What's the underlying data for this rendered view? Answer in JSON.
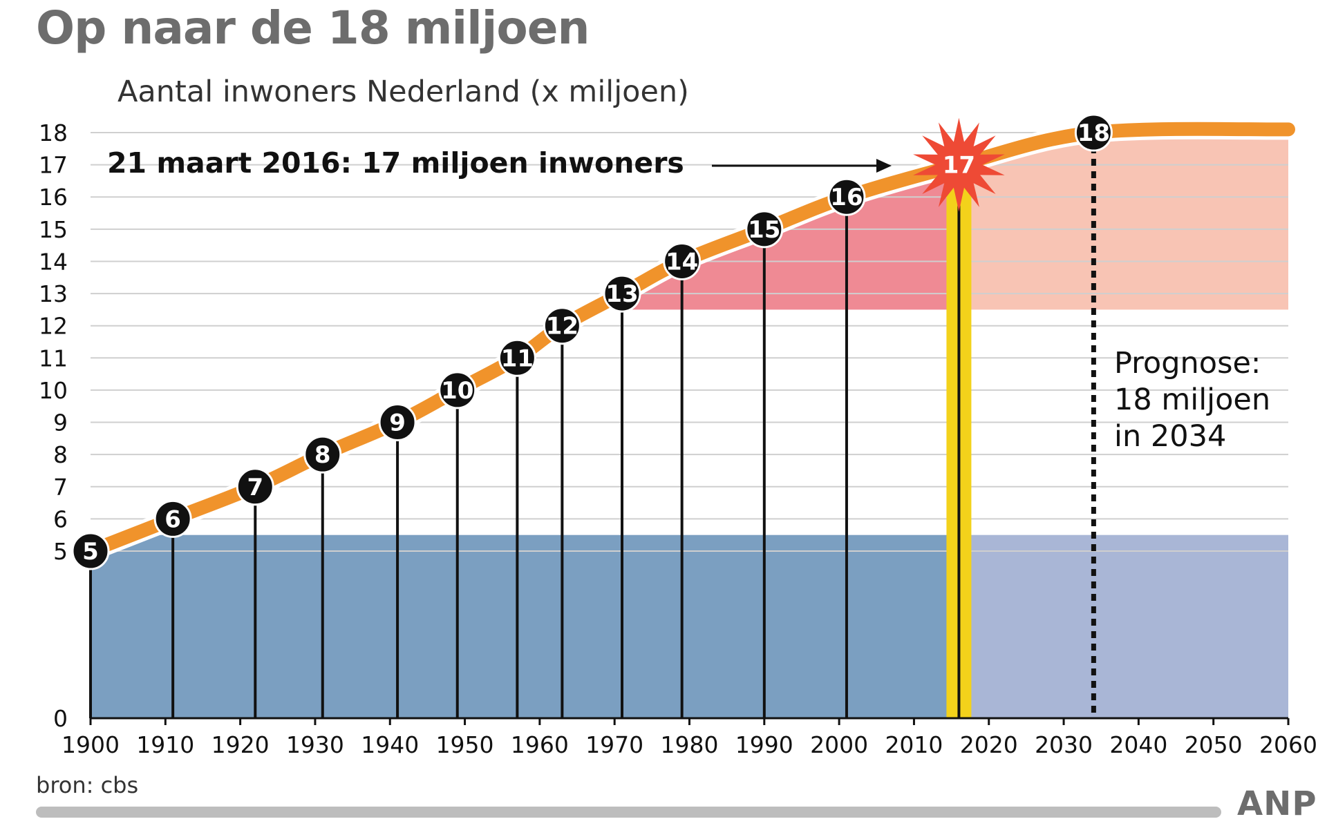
{
  "chart_data": {
    "type": "line",
    "title": "Op naar de 18 miljoen",
    "subtitle": "Aantal inwoners Nederland (x miljoen)",
    "source": "bron: cbs",
    "logo": "ANP",
    "xlim": [
      1900,
      2060
    ],
    "x_ticks": [
      1900,
      1910,
      1920,
      1930,
      1940,
      1950,
      1960,
      1970,
      1980,
      1990,
      2000,
      2010,
      2020,
      2030,
      2040,
      2050,
      2060
    ],
    "y_ticks": [
      0,
      5,
      6,
      7,
      8,
      9,
      10,
      11,
      12,
      13,
      14,
      15,
      16,
      17,
      18
    ],
    "grid": "horizontal",
    "y_axis_break": "between 0 and 5",
    "series": [
      {
        "name": "",
        "color": "#f0932b",
        "points": [
          {
            "x": 1900,
            "y": 5.0,
            "label": "5"
          },
          {
            "x": 1911,
            "y": 6.0,
            "label": "6"
          },
          {
            "x": 1922,
            "y": 7.0,
            "label": "7"
          },
          {
            "x": 1931,
            "y": 8.0,
            "label": "8"
          },
          {
            "x": 1941,
            "y": 9.0,
            "label": "9"
          },
          {
            "x": 1949,
            "y": 10.0,
            "label": "10"
          },
          {
            "x": 1957,
            "y": 11.0,
            "label": "11"
          },
          {
            "x": 1963,
            "y": 12.0,
            "label": "12"
          },
          {
            "x": 1971,
            "y": 13.0,
            "label": "13"
          },
          {
            "x": 1979,
            "y": 14.0,
            "label": "14"
          },
          {
            "x": 1990,
            "y": 15.0,
            "label": "15"
          },
          {
            "x": 2001,
            "y": 16.0,
            "label": "16"
          },
          {
            "x": 2016,
            "y": 17.0,
            "label": "17"
          },
          {
            "x": 2034,
            "y": 18.0,
            "label": "18"
          },
          {
            "x": 2060,
            "y": 18.1
          }
        ]
      }
    ],
    "highlight_year": 2016,
    "forecast_year": 2034,
    "annotations": {
      "milestone": "21 maart 2016: 17 miljoen inwoners",
      "prognose": [
        "Prognose:",
        "18 miljoen",
        "in 2034"
      ]
    },
    "colors": {
      "line": "#f0932b",
      "flag_red": "#ef8a94",
      "flag_red_forecast": "#f8c4b4",
      "flag_blue": "#7b9fc1",
      "flag_blue_forecast": "#a9b6d6",
      "highlight": "#f3d21b",
      "burst": "#ee4a35"
    }
  }
}
